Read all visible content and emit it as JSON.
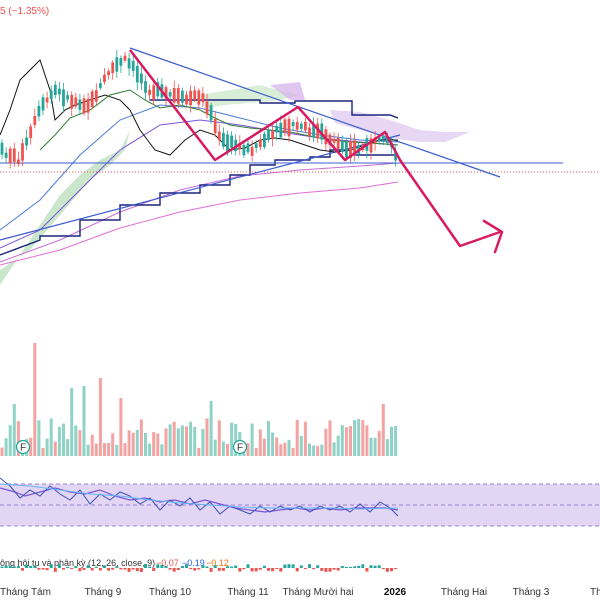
{
  "header": {
    "change_text": "5 (−1.35%)"
  },
  "x_axis": {
    "labels": [
      "Tháng Tám",
      "Tháng 9",
      "Tháng 10",
      "Tháng 11",
      "Tháng Mười hai",
      "2026",
      "Tháng Hai",
      "Tháng 3",
      "Th"
    ]
  },
  "macd_legend": {
    "title": "ông hội tụ và phân kỳ (12, 26, close, 9)",
    "v1": "−0.07",
    "v2": "−0.19",
    "v3": "−0.12"
  },
  "markers": {
    "f": "F"
  },
  "colors": {
    "up": "#26a69a",
    "down": "#ef5350",
    "projection": "#d81b60",
    "trendline": "#3c5ccf",
    "cloud": "#4caf50",
    "rsi_band": "#c9b3ec",
    "ma_purple": "#e26fd6"
  },
  "chart_data": [
    {
      "type": "candlestick",
      "title": "",
      "indicators": [
        "Ichimoku cloud",
        "Donchian channel",
        "moving averages",
        "trendlines",
        "zigzag projection"
      ],
      "x_ticks": [
        "Tháng Tám",
        "Tháng 9",
        "Tháng 10",
        "Tháng 11",
        "Tháng Mười hai",
        "2026",
        "Tháng Hai",
        "Tháng 3"
      ],
      "last_change_percent": -1.35,
      "projection": "down"
    },
    {
      "type": "bar",
      "title": "",
      "series": [
        {
          "name": "",
          "values": "volume"
        }
      ]
    },
    {
      "type": "line",
      "title": "",
      "series": [
        {
          "name": "",
          "values": "oscillator"
        }
      ]
    },
    {
      "type": "line",
      "title": "ông hội tụ và phân kỳ (12, 26, close, 9)",
      "series": [
        {
          "name": "",
          "last": -0.07
        },
        {
          "name": "",
          "last": -0.19
        },
        {
          "name": "",
          "last": -0.12
        }
      ]
    }
  ]
}
